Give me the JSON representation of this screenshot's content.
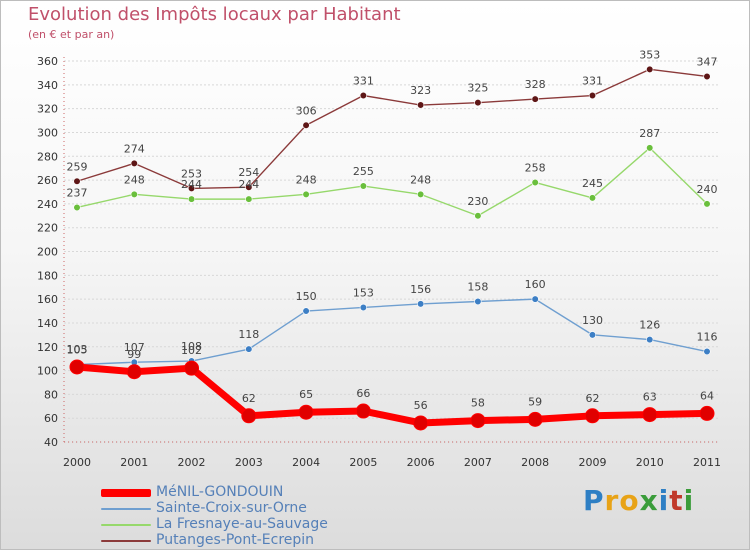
{
  "title": "Evolution des Impôts locaux par Habitant",
  "subtitle": "(en € et par an)",
  "brand": {
    "letters": [
      "P",
      "r",
      "o",
      "x",
      "i",
      "t",
      "i"
    ],
    "colors": [
      "#2e7fc4",
      "#e8a317",
      "#e8a317",
      "#3a9c3a",
      "#2e7fc4",
      "#c0392b",
      "#3a9c3a"
    ]
  },
  "chart_data": {
    "type": "line",
    "x": [
      "2000",
      "2001",
      "2002",
      "2003",
      "2004",
      "2005",
      "2006",
      "2007",
      "2008",
      "2009",
      "2010",
      "2011"
    ],
    "ylim": [
      40,
      360
    ],
    "yticks": [
      40,
      60,
      80,
      100,
      120,
      140,
      160,
      180,
      200,
      220,
      240,
      260,
      280,
      300,
      320,
      340,
      360
    ],
    "grid": "horizontal",
    "legend_position": "bottom-left",
    "series": [
      {
        "name": "MéNIL-GONDOUIN",
        "values": [
          103,
          99,
          102,
          62,
          65,
          66,
          56,
          58,
          59,
          62,
          63,
          64
        ],
        "labels": [
          "103",
          "99",
          "102",
          "62",
          "65",
          "66",
          "56",
          "58",
          "59",
          "62",
          "63",
          "64"
        ],
        "color": "#ff0000",
        "marker_color": "#e00000",
        "width": 7,
        "marker": 7
      },
      {
        "name": "Sainte-Croix-sur-Orne",
        "values": [
          105,
          107,
          108,
          118,
          150,
          153,
          156,
          158,
          160,
          130,
          126,
          116
        ],
        "labels": [
          "105",
          "107",
          "108",
          "118",
          "150",
          "153",
          "156",
          "158",
          "160",
          "130",
          "126",
          "116"
        ],
        "color": "#6f9fd0",
        "marker_color": "#3d7fc5",
        "width": 1.4,
        "marker": 3.3
      },
      {
        "name": "La Fresnaye-au-Sauvage",
        "values": [
          237,
          248,
          244,
          244,
          248,
          255,
          248,
          230,
          258,
          245,
          287,
          240
        ],
        "labels": [
          "237",
          "248",
          "244",
          "244",
          "248",
          "255",
          "248",
          "230",
          "258",
          "245",
          "287",
          "240"
        ],
        "color": "#96d86b",
        "marker_color": "#6abf3c",
        "width": 1.4,
        "marker": 3.3
      },
      {
        "name": "Putanges-Pont-Ecrepin",
        "values": [
          259,
          274,
          253,
          254,
          306,
          331,
          323,
          325,
          328,
          331,
          353,
          347
        ],
        "labels": [
          "259",
          "274",
          "253",
          "254",
          "306",
          "331",
          "323",
          "325",
          "328",
          "331",
          "353",
          "347"
        ],
        "color": "#8b3a3a",
        "marker_color": "#5e1616",
        "width": 1.4,
        "marker": 3.3
      }
    ]
  }
}
